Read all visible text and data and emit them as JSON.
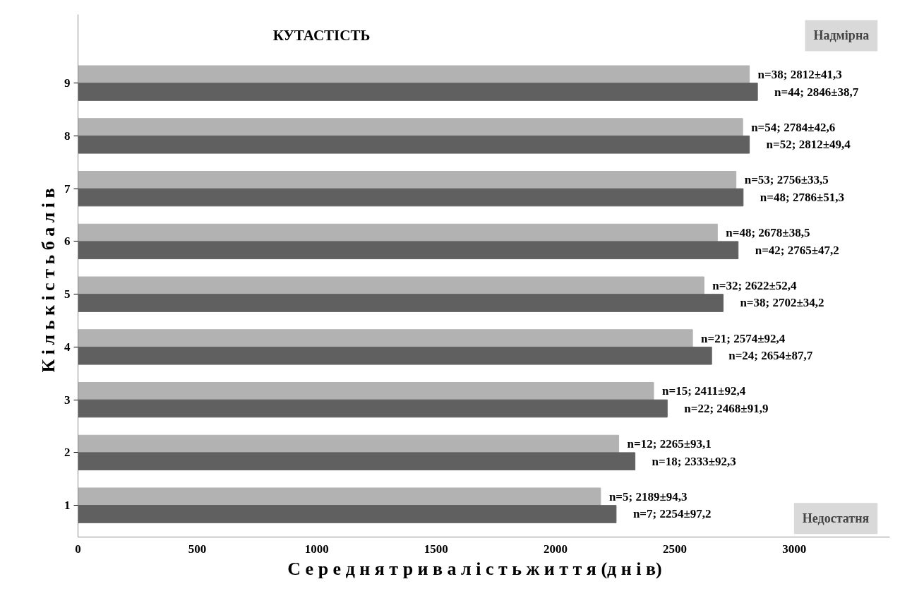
{
  "chart_data": {
    "type": "bar",
    "orientation": "horizontal",
    "title": "КУТАСТІСТЬ",
    "xlabel": "С е р е д н я   т р и в а л і с т ь   ж и т т я (д н і в)",
    "ylabel": "К і л ь к і с т ь   б а л і в",
    "categories": [
      "9",
      "8",
      "7",
      "6",
      "5",
      "4",
      "3",
      "2",
      "1"
    ],
    "series": [
      {
        "color": "#b2b2b2",
        "values": [
          2812,
          2784,
          2756,
          2678,
          2622,
          2574,
          2411,
          2265,
          2189
        ],
        "value_labels": [
          "n=38; 2812±41,3",
          "n=54; 2784±42,6",
          "n=53; 2756±33,5",
          "n=48; 2678±38,5",
          "n=32; 2622±52,4",
          "n=21; 2574±92,4",
          "n=15; 2411±92,4",
          "n=12; 2265±93,1",
          "n=5; 2189±94,3"
        ]
      },
      {
        "color": "#606060",
        "values": [
          2846,
          2812,
          2786,
          2765,
          2702,
          2654,
          2468,
          2333,
          2254
        ],
        "value_labels": [
          "n=44; 2846±38,7",
          "n=52; 2812±49,4",
          "n=48; 2786±51,3",
          "n=42; 2765±47,2",
          "n=38; 2702±34,2",
          "n=24; 2654±87,7",
          "n=22; 2468±91,9",
          "n=18; 2333±92,3",
          "n=7; 2254±97,2"
        ]
      }
    ],
    "xlim": [
      0,
      3400
    ],
    "xticks": [
      0,
      500,
      1000,
      1500,
      2000,
      2500,
      3000
    ],
    "annotations": [
      "Надмірна",
      "Недостатня"
    ]
  }
}
